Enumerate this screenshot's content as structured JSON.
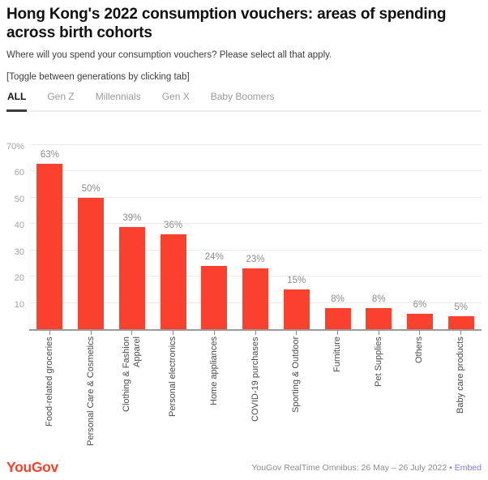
{
  "header": {
    "title": "Hong Kong's 2022 consumption vouchers: areas of spending across birth cohorts",
    "subtitle": "Where will you spend your consumption vouchers? Please select all that apply.",
    "note": "[Toggle between generations by clicking tab]"
  },
  "tabs": [
    {
      "label": "ALL",
      "active": true
    },
    {
      "label": "Gen Z",
      "active": false
    },
    {
      "label": "Millennials",
      "active": false
    },
    {
      "label": "Gen X",
      "active": false
    },
    {
      "label": "Baby Boomers",
      "active": false
    }
  ],
  "chart_data": {
    "type": "bar",
    "title": "Hong Kong's 2022 consumption vouchers: areas of spending across birth cohorts",
    "subtitle": "Where will you spend your consumption vouchers? Please select all that apply.",
    "categories": [
      "Food-related groceries",
      "Personal Care & Cosmetics",
      "Clothing & Fashion\nApparel",
      "Personal electronics",
      "Home appliances",
      "COVID-19 purchases",
      "Sporting & Outdoor",
      "Furniture",
      "Pet Supplies",
      "Others",
      "Baby care products"
    ],
    "values": [
      63,
      50,
      39,
      36,
      24,
      23,
      15,
      8,
      8,
      6,
      5
    ],
    "value_labels": [
      "63%",
      "50%",
      "39%",
      "36%",
      "24%",
      "23%",
      "15%",
      "8%",
      "8%",
      "6%",
      "5%"
    ],
    "xlabel": "",
    "ylabel": "",
    "ylim": [
      0,
      70
    ],
    "yticks": [
      {
        "value": 70,
        "label": "70%"
      },
      {
        "value": 60,
        "label": "60"
      },
      {
        "value": 50,
        "label": "50"
      },
      {
        "value": 40,
        "label": "40"
      },
      {
        "value": 30,
        "label": "30"
      },
      {
        "value": 20,
        "label": "20"
      },
      {
        "value": 10,
        "label": "10"
      }
    ],
    "grid": true,
    "legend": null,
    "bar_color": "#fa412d"
  },
  "colors": {
    "bar": "#fa412d",
    "title": "#111111",
    "subtitle": "#3d3d3d",
    "tab_active": "#141414",
    "tab_inactive": "#9b9b9b",
    "gridline": "#ebebeb",
    "axis_line": "#9b9b9b",
    "y_labels": "#a3a3a3",
    "value_labels": "#8c8c8c",
    "x_labels": "#4c4c4c",
    "footer_text": "#8c8c8c",
    "embed_link": "#7a7aee",
    "logo_red": "#fa412d"
  },
  "footer": {
    "logo": "YouGov",
    "logo_mark": "’",
    "source": "YouGov RealTime Omnibus: 26 May – 26 July 2022",
    "separator": "•",
    "embed": "Embed"
  }
}
